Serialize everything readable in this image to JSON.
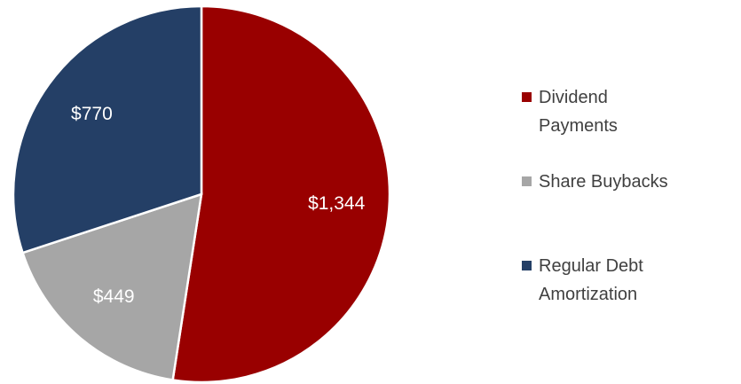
{
  "chart_data": {
    "type": "pie",
    "categories": [
      "Dividend Payments",
      "Share Buybacks",
      "Regular Debt Amortization"
    ],
    "values": [
      1344,
      449,
      770
    ],
    "value_labels": [
      "$1,344",
      "$449",
      "$770"
    ],
    "colors": [
      "#990000",
      "#a6a6a6",
      "#243f66"
    ],
    "legend": "right"
  }
}
